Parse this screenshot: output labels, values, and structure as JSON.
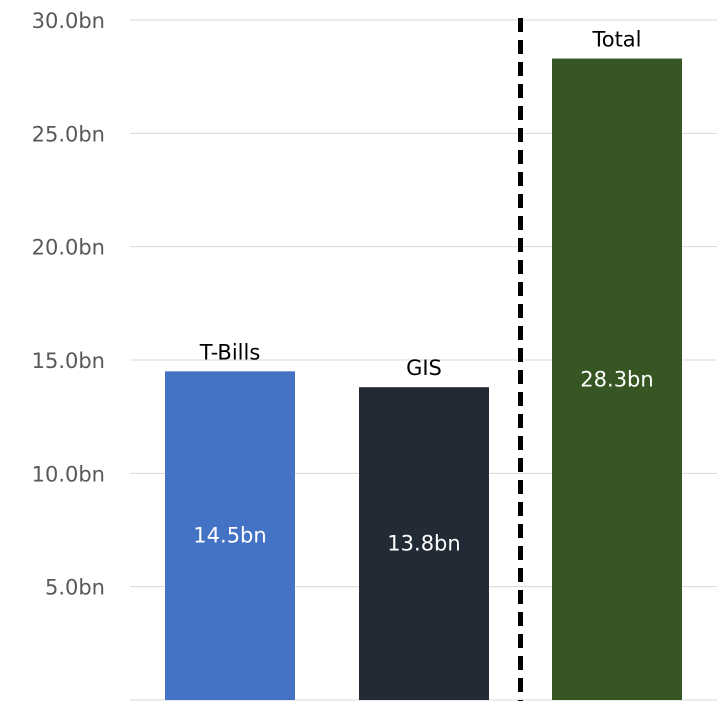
{
  "chart_data": {
    "type": "bar",
    "categories": [
      "T-Bills",
      "GIS",
      "Total"
    ],
    "values": [
      14.5,
      13.8,
      28.3
    ],
    "data_labels": [
      "14.5bn",
      "13.8bn",
      "28.3bn"
    ],
    "colors": [
      "#4472c4",
      "#222a35",
      "#375623"
    ],
    "yticks": [
      0,
      5,
      10,
      15,
      20,
      25,
      30
    ],
    "ytick_labels": [
      "",
      "5.0bn",
      "10.0bn",
      "15.0bn",
      "20.0bn",
      "25.0bn",
      "30.0bn"
    ],
    "ylim": [
      0,
      30
    ],
    "grid": true,
    "divider_before_category": "Total",
    "legend": false
  }
}
